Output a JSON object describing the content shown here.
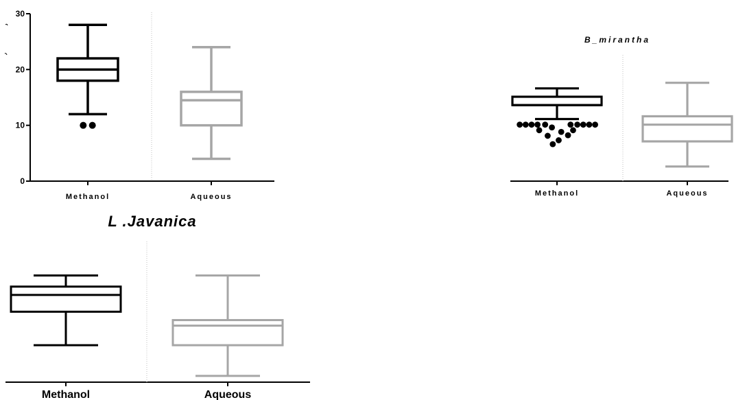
{
  "colors": {
    "methanol": "#000000",
    "aqueous": "#a6a6a6",
    "divider": "#bfbfbf",
    "axis": "#000000"
  },
  "chart_data": [
    {
      "type": "box",
      "title": "",
      "xlabel": "",
      "ylabel": "",
      "ylim": [
        0,
        30
      ],
      "yticks": [
        "0",
        "10",
        "20",
        "30"
      ],
      "categories": [
        "Methanol",
        "Aqueous"
      ],
      "boxes": [
        {
          "name": "Methanol",
          "min": 12,
          "q1": 18,
          "median": 20,
          "q3": 22,
          "max": 28,
          "outliers": [
            [
              -0.08,
              10
            ],
            [
              0.08,
              10
            ]
          ]
        },
        {
          "name": "Aqueous",
          "min": 4,
          "q1": 10,
          "median": 14.5,
          "q3": 16,
          "max": 24,
          "outliers": []
        }
      ]
    },
    {
      "type": "box",
      "title": "B_mirantha",
      "xlabel": "",
      "ylabel": "",
      "ylim": [
        0,
        30
      ],
      "yticks": [],
      "categories": [
        "Methanol",
        "Aqueous"
      ],
      "boxes": [
        {
          "name": "Methanol",
          "min": 18.5,
          "q1": 21,
          "median": 21,
          "q3": 22.5,
          "max": 24,
          "outliers": [
            [
              -0.44,
              17.5
            ],
            [
              -0.37,
              17.5
            ],
            [
              -0.3,
              17.5
            ],
            [
              -0.23,
              17.5
            ],
            [
              -0.14,
              17.5
            ],
            [
              0.16,
              17.5
            ],
            [
              0.24,
              17.5
            ],
            [
              0.31,
              17.5
            ],
            [
              0.38,
              17.5
            ],
            [
              0.45,
              17.5
            ],
            [
              -0.21,
              16.5
            ],
            [
              -0.06,
              17
            ],
            [
              0.05,
              16.2
            ],
            [
              0.19,
              16.5
            ],
            [
              -0.11,
              15.5
            ],
            [
              0.13,
              15.6
            ],
            [
              0.02,
              14.7
            ],
            [
              -0.05,
              14
            ]
          ]
        },
        {
          "name": "Aqueous",
          "min": 10,
          "q1": 14.5,
          "median": 17.5,
          "q3": 19,
          "max": 25,
          "outliers": []
        }
      ]
    },
    {
      "type": "box",
      "title": "L .Javanica",
      "xlabel": "",
      "ylabel": "",
      "ylim": [
        0,
        30
      ],
      "yticks": [],
      "categories": [
        "Methanol",
        "Aqueous"
      ],
      "boxes": [
        {
          "name": "Methanol",
          "min": 14,
          "q1": 20,
          "median": 23,
          "q3": 24.5,
          "max": 26.5,
          "outliers": []
        },
        {
          "name": "Aqueous",
          "min": 8.5,
          "q1": 14,
          "median": 17.5,
          "q3": 18.5,
          "max": 26.5,
          "outliers": []
        }
      ]
    }
  ]
}
